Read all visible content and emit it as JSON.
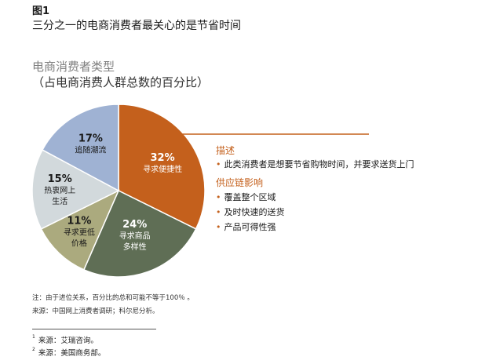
{
  "figure": {
    "label": "图1",
    "title": "三分之一的电商消费者最关心的是节省时间"
  },
  "chart_data": {
    "type": "pie",
    "title": "电商消费者类型",
    "subtitle": "（占电商消费人群总数的百分比）",
    "slices": [
      {
        "pct": "32%",
        "label_lines": [
          "寻求便捷性"
        ],
        "value": 32,
        "color": "#c4601c"
      },
      {
        "pct": "24%",
        "label_lines": [
          "寻求商品",
          "多样性"
        ],
        "value": 24,
        "color": "#5f6e55"
      },
      {
        "pct": "11%",
        "label_lines": [
          "寻求更低",
          "价格"
        ],
        "value": 11,
        "color": "#abaa7e"
      },
      {
        "pct": "15%",
        "label_lines": [
          "热衷网上",
          "生活"
        ],
        "value": 15,
        "color": "#d2d9dc"
      },
      {
        "pct": "17%",
        "label_lines": [
          "追随潮流"
        ],
        "value": 17,
        "color": "#9fb2d3"
      }
    ]
  },
  "callout": {
    "desc_heading": "描述",
    "desc_items": [
      "此类消费者是想要节省购物时间，并要求送货上门"
    ],
    "supply_heading": "供应链影响",
    "supply_items": [
      "覆盖整个区域",
      "及时快速的送货",
      "产品可得性强"
    ],
    "accent_color": "#c4601c",
    "bullet": "•"
  },
  "notes": {
    "note": "注：由于进位关系，百分比的总和可能不等于100％  。",
    "source": "来源：中国网上消费者调研；科尔尼分析。"
  },
  "footnotes": [
    {
      "num": "1",
      "text": "来源：艾瑞咨询。"
    },
    {
      "num": "2",
      "text": "来源：美国商务部。"
    }
  ]
}
